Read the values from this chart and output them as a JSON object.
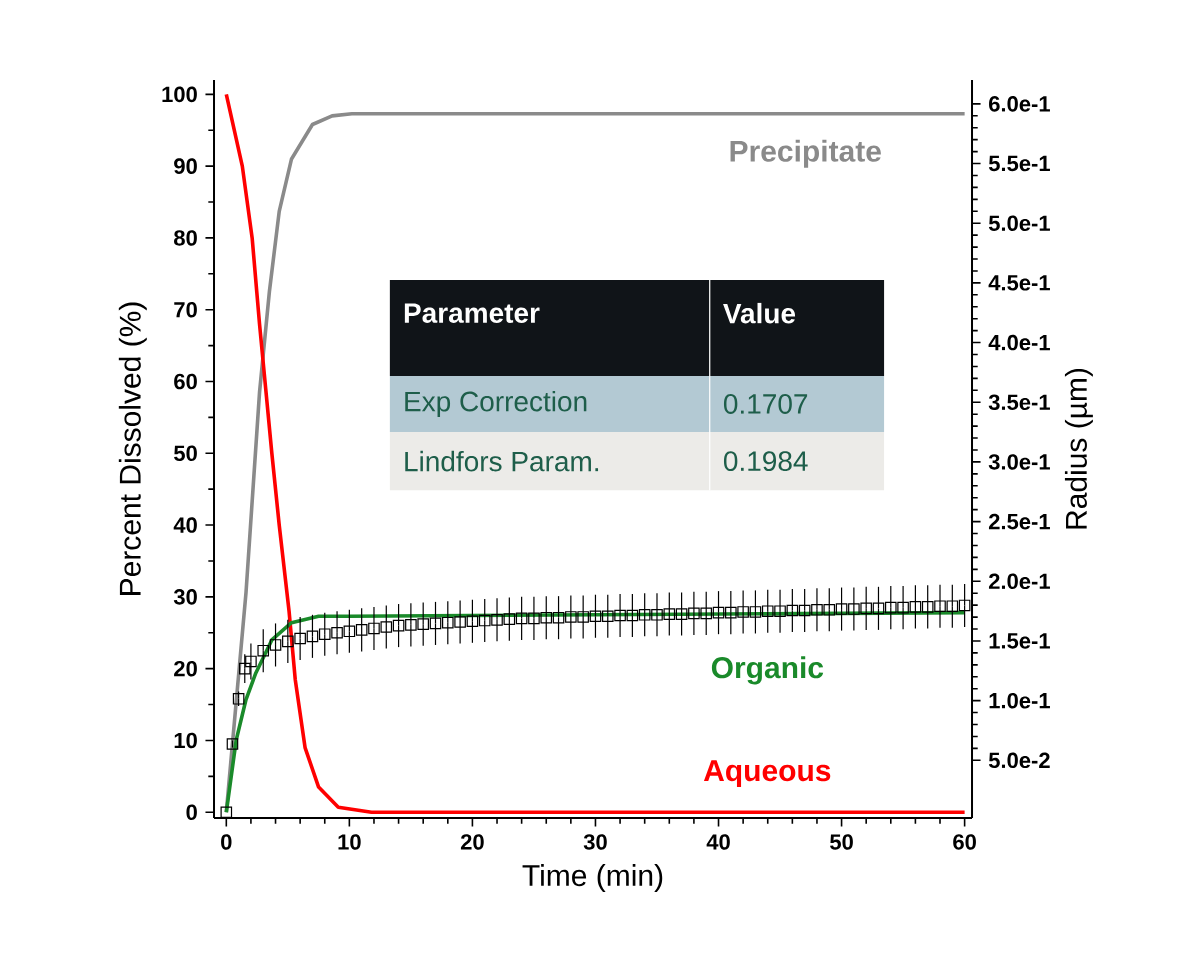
{
  "chart_data": {
    "type": "line",
    "xlabel": "Time (min)",
    "ylabel": "Percent Dissolved (%)",
    "y2label": "Radius (µm)",
    "xlim": [
      -1,
      60.6
    ],
    "ylim": [
      -0.8,
      102
    ],
    "xticks": [
      0,
      10,
      20,
      30,
      40,
      50,
      60
    ],
    "yticks": [
      0,
      10,
      20,
      30,
      40,
      50,
      60,
      70,
      80,
      90,
      100
    ],
    "y2lim": [
      0.0017,
      0.62
    ],
    "y2ticks": [
      {
        "value": 0.05,
        "label": "5.0e-2"
      },
      {
        "value": 0.1,
        "label": "1.0e-1"
      },
      {
        "value": 0.15,
        "label": "1.5e-1"
      },
      {
        "value": 0.2,
        "label": "2.0e-1"
      },
      {
        "value": 0.25,
        "label": "2.5e-1"
      },
      {
        "value": 0.3,
        "label": "3.0e-1"
      },
      {
        "value": 0.35,
        "label": "3.5e-1"
      },
      {
        "value": 0.4,
        "label": "4.0e-1"
      },
      {
        "value": 0.45,
        "label": "4.5e-1"
      },
      {
        "value": 0.5,
        "label": "5.0e-1"
      },
      {
        "value": 0.55,
        "label": "5.5e-1"
      },
      {
        "value": 0.6,
        "label": "6.0e-1"
      }
    ],
    "annotations": [
      "Parameter",
      "Value",
      "Exp Correction",
      "0.1707",
      "Lindfors Param.",
      "0.1984"
    ],
    "series": [
      {
        "name": "Precipitate",
        "color": "#8a8a8a",
        "x": [
          0,
          1.6,
          2.7,
          3.5,
          4.3,
          5.3,
          7,
          8.6,
          10.2,
          60
        ],
        "values": [
          0,
          30.6,
          58.5,
          72.5,
          83.7,
          91,
          95.8,
          97,
          97.3,
          97.3
        ]
      },
      {
        "name": "Aqueous",
        "color": "#ff0000",
        "x": [
          0,
          1.3,
          2.1,
          2.7,
          3.2,
          3.7,
          4.3,
          5.1,
          5.6,
          6.4,
          7.5,
          9.1,
          11.8,
          60
        ],
        "values": [
          100,
          90,
          80,
          68,
          59,
          50,
          40,
          28,
          18.5,
          9,
          3.5,
          0.7,
          0,
          0
        ]
      },
      {
        "name": "Organic",
        "color": "#1a8a2a",
        "x": [
          0,
          0.8,
          1.6,
          2.4,
          3.7,
          5.3,
          7.5,
          10,
          30,
          60
        ],
        "values": [
          0,
          10,
          15.7,
          19.4,
          24,
          26.4,
          27.3,
          27.3,
          27.5,
          27.8
        ]
      },
      {
        "type": "scatter",
        "color": "#000000",
        "marker": "square",
        "x": [
          0,
          0.5,
          1,
          1.5,
          2,
          3,
          4,
          5,
          6,
          7,
          8,
          9,
          10,
          11,
          12,
          13,
          14,
          15,
          16,
          17,
          18,
          19,
          20,
          21,
          22,
          23,
          24,
          25,
          26,
          27,
          28,
          29,
          30,
          31,
          32,
          33,
          34,
          35,
          36,
          37,
          38,
          39,
          40,
          41,
          42,
          43,
          44,
          45,
          46,
          47,
          48,
          49,
          50,
          51,
          52,
          53,
          54,
          55,
          56,
          57,
          58,
          59,
          60
        ],
        "values": [
          0,
          9.5,
          15.8,
          20,
          21,
          22.5,
          23.3,
          23.8,
          24.2,
          24.5,
          24.8,
          25,
          25.2,
          25.4,
          25.6,
          25.8,
          26,
          26.1,
          26.2,
          26.3,
          26.4,
          26.5,
          26.6,
          26.7,
          26.8,
          26.9,
          27,
          27,
          27.1,
          27.1,
          27.2,
          27.2,
          27.3,
          27.3,
          27.4,
          27.4,
          27.5,
          27.5,
          27.6,
          27.6,
          27.7,
          27.7,
          27.8,
          27.8,
          27.9,
          27.9,
          28,
          28,
          28.1,
          28.1,
          28.2,
          28.2,
          28.3,
          28.3,
          28.4,
          28.4,
          28.5,
          28.5,
          28.6,
          28.6,
          28.7,
          28.7,
          28.8
        ],
        "errors": [
          null,
          0.5,
          1,
          2,
          2.5,
          3,
          3,
          3,
          3,
          3,
          3,
          3,
          3,
          3,
          3,
          3,
          3,
          3,
          3,
          3,
          3,
          3,
          3,
          3,
          3,
          3,
          3,
          3,
          3,
          3,
          3,
          3,
          3,
          3,
          3,
          3,
          3,
          3,
          3,
          3,
          3,
          3,
          3,
          3,
          3,
          3,
          3,
          3,
          3,
          3,
          3,
          3,
          3,
          3,
          3,
          3,
          3,
          3,
          3,
          3,
          3,
          3,
          3
        ]
      }
    ]
  }
}
